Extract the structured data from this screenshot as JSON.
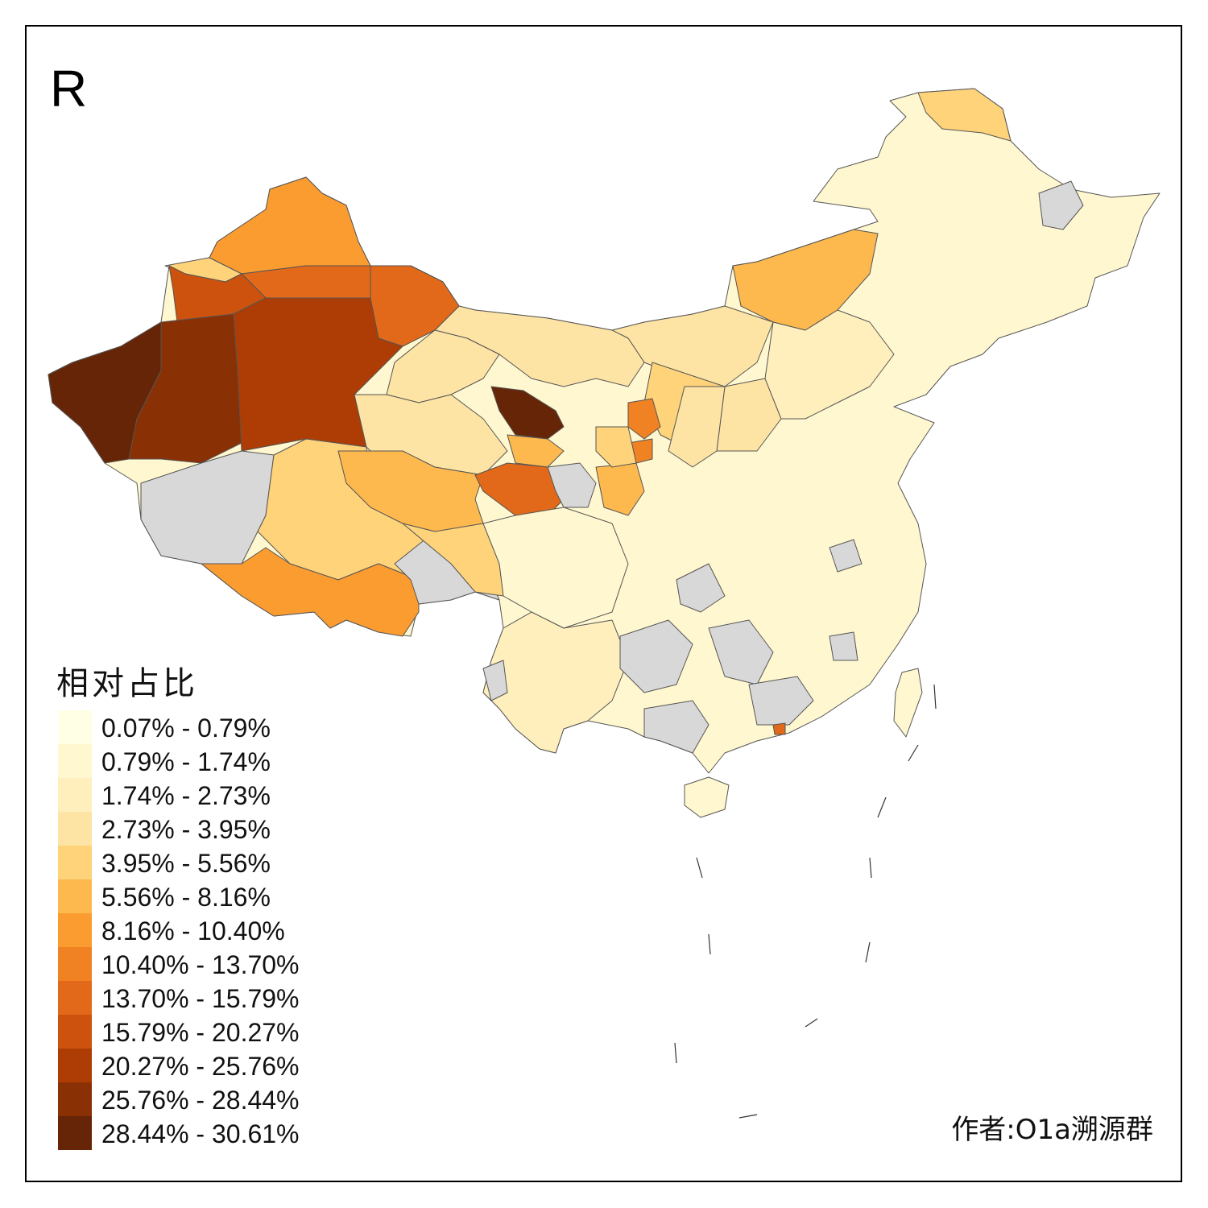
{
  "map": {
    "panel_letter": "R",
    "legend_title": "相对占比",
    "author": "作者:O1a溯源群",
    "no_data_color": "#d8d8d8",
    "legend": [
      {
        "label": "0.07% - 0.79%",
        "color": "#ffffe5"
      },
      {
        "label": "0.79% - 1.74%",
        "color": "#fff7cf"
      },
      {
        "label": "1.74% - 2.73%",
        "color": "#feefbc"
      },
      {
        "label": "2.73% - 3.95%",
        "color": "#fee4a4"
      },
      {
        "label": "3.95% - 5.56%",
        "color": "#fed37a"
      },
      {
        "label": "5.56% - 8.16%",
        "color": "#fdb84e"
      },
      {
        "label": "8.16% - 10.40%",
        "color": "#fb9c31"
      },
      {
        "label": "10.40% - 13.70%",
        "color": "#f08224"
      },
      {
        "label": "13.70% - 15.79%",
        "color": "#e2691a"
      },
      {
        "label": "15.79% - 20.27%",
        "color": "#cc520e"
      },
      {
        "label": "20.27% - 25.76%",
        "color": "#ad3d05"
      },
      {
        "label": "25.76% - 28.44%",
        "color": "#8a3005"
      },
      {
        "label": "28.44% - 30.61%",
        "color": "#662506"
      }
    ]
  }
}
